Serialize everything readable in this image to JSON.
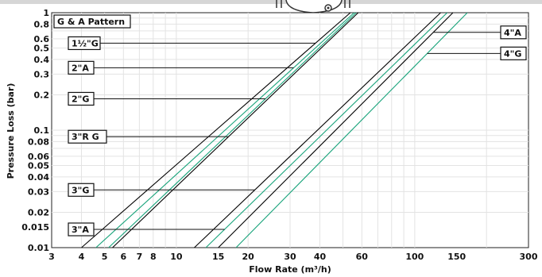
{
  "chart_data": {
    "type": "line",
    "title": "G & A Pattern",
    "xlabel": "Flow Rate (m³/h)",
    "ylabel": "Pressure Loss (bar)",
    "xscale": "log",
    "yscale": "log",
    "xlim": [
      3,
      300
    ],
    "ylim": [
      0.01,
      1
    ],
    "x_ticks": [
      {
        "v": 3,
        "label": "3"
      },
      {
        "v": 4,
        "label": "4"
      },
      {
        "v": 5,
        "label": "5"
      },
      {
        "v": 6,
        "label": "6"
      },
      {
        "v": 7,
        "label": "7"
      },
      {
        "v": 8,
        "label": "8"
      },
      {
        "v": 10,
        "label": "10"
      },
      {
        "v": 15,
        "label": "15"
      },
      {
        "v": 20,
        "label": "20"
      },
      {
        "v": 30,
        "label": "30"
      },
      {
        "v": 40,
        "label": "40"
      },
      {
        "v": 60,
        "label": "60"
      },
      {
        "v": 100,
        "label": "100"
      },
      {
        "v": 150,
        "label": "150"
      },
      {
        "v": 300,
        "label": "300"
      }
    ],
    "y_ticks": [
      {
        "v": 1,
        "label": "1"
      },
      {
        "v": 0.8,
        "label": "0.8"
      },
      {
        "v": 0.6,
        "label": "0.6"
      },
      {
        "v": 0.5,
        "label": "0.5"
      },
      {
        "v": 0.4,
        "label": "0.4"
      },
      {
        "v": 0.3,
        "label": "0.3"
      },
      {
        "v": 0.2,
        "label": "0.2"
      },
      {
        "v": 0.1,
        "label": "0.1"
      },
      {
        "v": 0.08,
        "label": "0.08"
      },
      {
        "v": 0.06,
        "label": "0.06"
      },
      {
        "v": 0.05,
        "label": "0.05"
      },
      {
        "v": 0.04,
        "label": "0.04"
      },
      {
        "v": 0.03,
        "label": "0.03"
      },
      {
        "v": 0.02,
        "label": "0.02"
      },
      {
        "v": 0.015,
        "label": "0.015"
      },
      {
        "v": 0.01,
        "label": "0.01"
      }
    ],
    "grid": true,
    "series": [
      {
        "name": "1½\"G",
        "color": "#000000",
        "x": [
          4.0,
          53.7
        ],
        "y": [
          0.01,
          1
        ]
      },
      {
        "name": "2\"A",
        "color": "#17a37a",
        "x": [
          4.6,
          55.7
        ],
        "y": [
          0.01,
          1
        ]
      },
      {
        "name": "2\"G",
        "color": "#17a37a",
        "x": [
          5.2,
          56.8
        ],
        "y": [
          0.01,
          1
        ]
      },
      {
        "name": "3\"R G",
        "color": "#000000",
        "x": [
          5.4,
          57.9
        ],
        "y": [
          0.01,
          1
        ]
      },
      {
        "name": "3\"G",
        "color": "#000000",
        "x": [
          11.9,
          128.4
        ],
        "y": [
          0.01,
          1
        ]
      },
      {
        "name": "3\"A",
        "color": "#17a37a",
        "x": [
          13.3,
          136.8
        ],
        "y": [
          0.01,
          1
        ]
      },
      {
        "name": "4\"A",
        "color": "#000000",
        "x": [
          15.0,
          144.6
        ],
        "y": [
          0.01,
          1
        ]
      },
      {
        "name": "4\"G",
        "color": "#17a37a",
        "x": [
          17.8,
          166.2
        ],
        "y": [
          0.01,
          1
        ]
      }
    ],
    "annotations": [
      {
        "text": "1½\"G",
        "series": 0,
        "side": "left",
        "y": 0.55
      },
      {
        "text": "2\"A",
        "series": 1,
        "side": "left",
        "y": 0.34
      },
      {
        "text": "2\"G",
        "series": 2,
        "side": "left",
        "y": 0.185
      },
      {
        "text": "3\"R G",
        "series": 3,
        "side": "left",
        "y": 0.088
      },
      {
        "text": "3\"G",
        "series": 4,
        "side": "left",
        "y": 0.031
      },
      {
        "text": "3\"A",
        "series": 5,
        "side": "left",
        "y": 0.0143
      },
      {
        "text": "4\"A",
        "series": 6,
        "side": "right",
        "y": 0.68
      },
      {
        "text": "4\"G",
        "series": 7,
        "side": "right",
        "y": 0.45
      }
    ]
  }
}
